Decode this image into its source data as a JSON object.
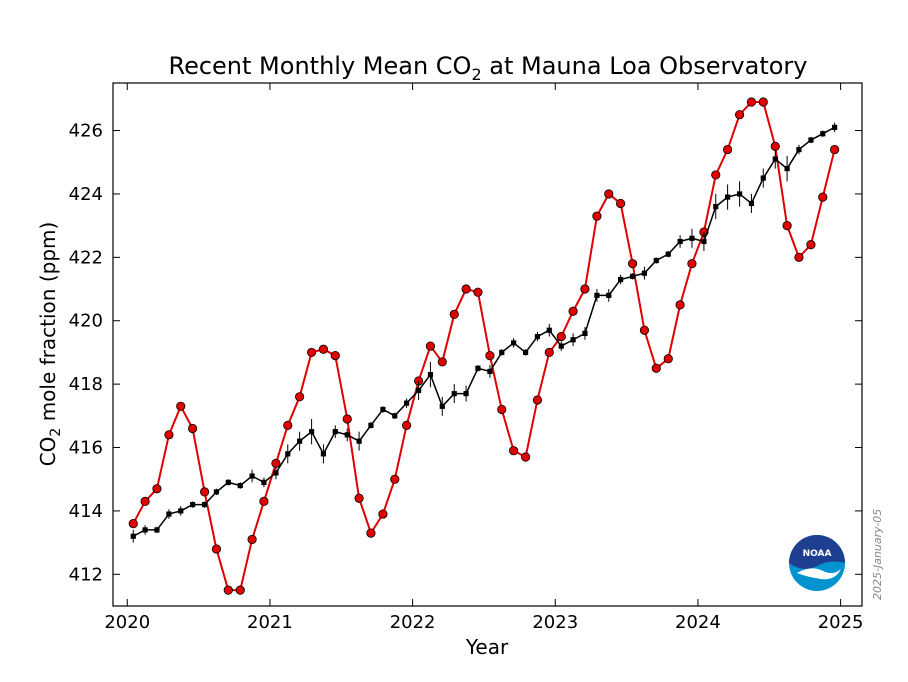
{
  "chart_data": {
    "type": "line",
    "title_main": "Recent Monthly Mean CO",
    "title_sub": "2",
    "title_rest": " at Mauna Loa Observatory",
    "xlabel": "Year",
    "ylabel_main": "CO",
    "ylabel_sub": "2",
    "ylabel_rest": " mole fraction (ppm)",
    "xlim": [
      2019.9,
      2025.15
    ],
    "ylim": [
      411.0,
      427.5
    ],
    "x_ticks": [
      2020,
      2021,
      2022,
      2023,
      2024,
      2025
    ],
    "x_tick_labels": [
      "2020",
      "2021",
      "2022",
      "2023",
      "2024",
      "2025"
    ],
    "y_ticks": [
      412,
      414,
      416,
      418,
      420,
      422,
      424,
      426
    ],
    "y_tick_labels": [
      "412",
      "414",
      "416",
      "418",
      "420",
      "422",
      "424",
      "426"
    ],
    "grid": false,
    "series": [
      {
        "color": "#e00000",
        "marker": "circle",
        "x": [
          2020.042,
          2020.125,
          2020.208,
          2020.292,
          2020.375,
          2020.458,
          2020.542,
          2020.625,
          2020.708,
          2020.792,
          2020.875,
          2020.958,
          2021.042,
          2021.125,
          2021.208,
          2021.292,
          2021.375,
          2021.458,
          2021.542,
          2021.625,
          2021.708,
          2021.792,
          2021.875,
          2021.958,
          2022.042,
          2022.125,
          2022.208,
          2022.292,
          2022.375,
          2022.458,
          2022.542,
          2022.625,
          2022.708,
          2022.792,
          2022.875,
          2022.958,
          2023.042,
          2023.125,
          2023.208,
          2023.292,
          2023.375,
          2023.458,
          2023.542,
          2023.625,
          2023.708,
          2023.792,
          2023.875,
          2023.958,
          2024.042,
          2024.125,
          2024.208,
          2024.292,
          2024.375,
          2024.458,
          2024.542,
          2024.625,
          2024.708,
          2024.792,
          2024.875,
          2024.958
        ],
        "values": [
          413.6,
          414.3,
          414.7,
          416.4,
          417.3,
          416.6,
          414.6,
          412.8,
          411.5,
          411.5,
          413.1,
          414.3,
          415.5,
          416.7,
          417.6,
          419.0,
          419.1,
          418.9,
          416.9,
          414.4,
          413.3,
          413.9,
          415.0,
          416.7,
          418.1,
          419.2,
          418.7,
          420.2,
          421.0,
          420.9,
          418.9,
          417.2,
          415.9,
          415.7,
          417.5,
          419.0,
          419.5,
          420.3,
          421.0,
          423.3,
          424.0,
          423.7,
          421.8,
          419.7,
          418.5,
          418.8,
          420.5,
          421.8,
          422.8,
          424.6,
          425.4,
          426.5,
          426.9,
          426.9,
          425.5,
          423.0,
          422.0,
          422.4,
          423.9,
          425.4
        ]
      },
      {
        "color": "#000000",
        "marker": "square",
        "x": [
          2020.042,
          2020.125,
          2020.208,
          2020.292,
          2020.375,
          2020.458,
          2020.542,
          2020.625,
          2020.708,
          2020.792,
          2020.875,
          2020.958,
          2021.042,
          2021.125,
          2021.208,
          2021.292,
          2021.375,
          2021.458,
          2021.542,
          2021.625,
          2021.708,
          2021.792,
          2021.875,
          2021.958,
          2022.042,
          2022.125,
          2022.208,
          2022.292,
          2022.375,
          2022.458,
          2022.542,
          2022.625,
          2022.708,
          2022.792,
          2022.875,
          2022.958,
          2023.042,
          2023.125,
          2023.208,
          2023.292,
          2023.375,
          2023.458,
          2023.542,
          2023.625,
          2023.708,
          2023.792,
          2023.875,
          2023.958,
          2024.042,
          2024.125,
          2024.208,
          2024.292,
          2024.375,
          2024.458,
          2024.542,
          2024.625,
          2024.708,
          2024.792,
          2024.875,
          2024.958
        ],
        "values": [
          413.2,
          413.4,
          413.4,
          413.9,
          414.0,
          414.2,
          414.2,
          414.6,
          414.9,
          414.8,
          415.1,
          414.9,
          415.2,
          415.8,
          416.2,
          416.5,
          415.8,
          416.5,
          416.4,
          416.2,
          416.7,
          417.2,
          417.0,
          417.4,
          417.8,
          418.3,
          417.3,
          417.7,
          417.7,
          418.5,
          418.4,
          419.0,
          419.3,
          419.0,
          419.5,
          419.7,
          419.2,
          419.4,
          419.6,
          420.8,
          420.8,
          421.3,
          421.4,
          421.5,
          421.9,
          422.1,
          422.5,
          422.6,
          422.5,
          423.6,
          423.9,
          424.0,
          423.7,
          424.5,
          425.1,
          424.8,
          425.4,
          425.7,
          425.9,
          426.1
        ],
        "errors": [
          0.2,
          0.15,
          0.1,
          0.15,
          0.15,
          0.1,
          0.1,
          0.1,
          0.1,
          0.1,
          0.2,
          0.15,
          0.2,
          0.3,
          0.3,
          0.4,
          0.3,
          0.2,
          0.2,
          0.3,
          0.1,
          0.1,
          0.1,
          0.15,
          0.3,
          0.4,
          0.3,
          0.3,
          0.25,
          0.1,
          0.2,
          0.1,
          0.15,
          0.1,
          0.15,
          0.2,
          0.15,
          0.2,
          0.2,
          0.2,
          0.2,
          0.15,
          0.1,
          0.2,
          0.1,
          0.1,
          0.2,
          0.3,
          0.3,
          0.4,
          0.4,
          0.4,
          0.3,
          0.3,
          0.3,
          0.4,
          0.15,
          0.1,
          0.1,
          0.15
        ]
      }
    ]
  },
  "side_date": "2025-January-05",
  "logo": {
    "text": "NOAA",
    "colors": {
      "dark": "#1e3f8f",
      "light": "#0093d0"
    }
  }
}
